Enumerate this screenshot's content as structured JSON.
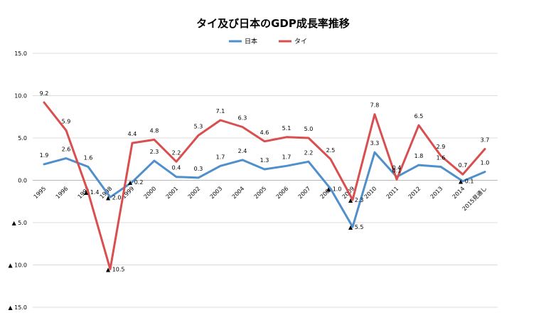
{
  "chart_data": {
    "type": "line",
    "title": "タイ及び日本のGDP成長率推移",
    "xlabel": "",
    "ylabel": "",
    "ylim": [
      -15,
      15
    ],
    "grid": true,
    "legend_position": "top-center",
    "categories": [
      "1995",
      "1996",
      "1997",
      "1998",
      "1999",
      "2000",
      "2001",
      "2002",
      "2003",
      "2004",
      "2005",
      "2006",
      "2007",
      "2008",
      "2009",
      "2010",
      "2011",
      "2012",
      "2013",
      "2014",
      "2015見通し"
    ],
    "y_ticks": [
      {
        "value": 15,
        "label": "15.0"
      },
      {
        "value": 10,
        "label": "10.0"
      },
      {
        "value": 5,
        "label": "5.0"
      },
      {
        "value": 0,
        "label": "0.0"
      },
      {
        "value": -5,
        "label": "▲ 5.0"
      },
      {
        "value": -10,
        "label": "▲ 10.0"
      },
      {
        "value": -15,
        "label": "▲ 15.0"
      }
    ],
    "series": [
      {
        "name": "日本",
        "color": "#4f8fcc",
        "values": [
          1.9,
          2.6,
          1.6,
          -2.0,
          -0.2,
          2.3,
          0.4,
          0.3,
          1.7,
          2.4,
          1.3,
          1.7,
          2.2,
          -1.0,
          -5.5,
          3.3,
          0.4,
          1.8,
          1.6,
          -0.1,
          1.0
        ],
        "labels": [
          "1.9",
          "2.6",
          "1.6",
          "▲ 2.0",
          "▲ 0.2",
          "2.3",
          "0.4",
          "0.3",
          "1.7",
          "2.4",
          "1.3",
          "1.7",
          "2.2",
          "▲ 1.0",
          "▲ 5.5",
          "3.3",
          "0.4",
          "1.8",
          "1.6",
          "▲ 0.1",
          "1.0"
        ]
      },
      {
        "name": "タイ",
        "color": "#d94f4f",
        "values": [
          9.2,
          5.9,
          -1.4,
          -10.5,
          4.4,
          4.8,
          2.2,
          5.3,
          7.1,
          6.3,
          4.6,
          5.1,
          5.0,
          2.5,
          -2.3,
          7.8,
          0.1,
          6.5,
          2.9,
          0.7,
          3.7
        ],
        "labels": [
          "9.2",
          "5.9",
          "▲ 1.4",
          "▲ 10.5",
          "4.4",
          "4.8",
          "2.2",
          "5.3",
          "7.1",
          "6.3",
          "4.6",
          "5.1",
          "5.0",
          "2.5",
          "▲ 2.3",
          "7.8",
          "0.1",
          "6.5",
          "2.9",
          "0.7",
          "3.7"
        ]
      }
    ]
  }
}
